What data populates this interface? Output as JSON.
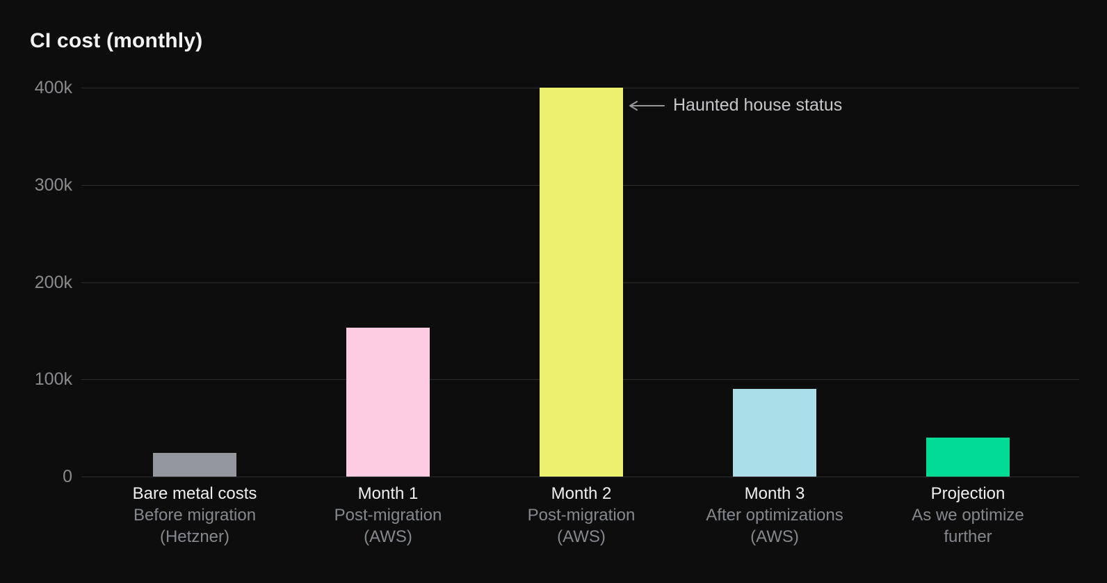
{
  "chart_data": {
    "type": "bar",
    "title": "CI cost (monthly)",
    "categories": [
      "Bare metal costs",
      "Month 1",
      "Month 2",
      "Month 3",
      "Projection"
    ],
    "category_subtitles": [
      [
        "Before migration",
        "(Hetzner)"
      ],
      [
        "Post-migration",
        "(AWS)"
      ],
      [
        "Post-migration",
        "(AWS)"
      ],
      [
        "After optimizations",
        "(AWS)"
      ],
      [
        "As we optimize",
        "further"
      ]
    ],
    "values": [
      24000,
      153000,
      400000,
      90000,
      40000
    ],
    "bar_colors": [
      "#94979e",
      "#fdcce2",
      "#edef6e",
      "#aadfea",
      "#00dc96"
    ],
    "ylim": [
      0,
      400000
    ],
    "yticks": [
      {
        "value": 400000,
        "label": "400k"
      },
      {
        "value": 300000,
        "label": "300k"
      },
      {
        "value": 200000,
        "label": "200k"
      },
      {
        "value": 100000,
        "label": "100k"
      },
      {
        "value": 0,
        "label": "0"
      }
    ],
    "grid": true,
    "legend_position": "none",
    "annotation": {
      "text": "Haunted house status",
      "arrow": "left-arrow",
      "points_to": "Month 2"
    }
  },
  "theme": {
    "background": "#0d0d0e",
    "title_color": "#f2f2f3",
    "tick_color": "#8a8b8e",
    "label_color": "#f0f0f1",
    "sublabel_color": "#85888d",
    "grid_color": "#2d2e30",
    "baseline_color": "#2d2e30",
    "annotation_color": "#c6c7c9",
    "arrow_color": "#97989b"
  }
}
